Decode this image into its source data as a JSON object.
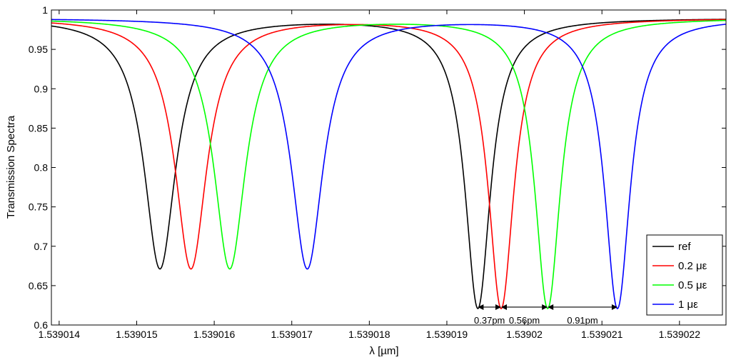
{
  "chart_data": {
    "type": "line",
    "title": "",
    "xlabel": "λ [µm]",
    "ylabel": "Transmission Spectra",
    "xlim": [
      1.5390139,
      1.5390226
    ],
    "ylim": [
      0.6,
      1.0
    ],
    "xticks": [
      1.539014,
      1.539015,
      1.539016,
      1.539017,
      1.539018,
      1.539019,
      1.53902,
      1.539021,
      1.539022
    ],
    "xtick_labels": [
      "1.539014",
      "1.539015",
      "1.539016",
      "1.539017",
      "1.539018",
      "1.539019",
      "1.53902",
      "1.539021",
      "1.539022"
    ],
    "yticks": [
      0.6,
      0.65,
      0.7,
      0.75,
      0.8,
      0.85,
      0.9,
      0.95,
      1.0
    ],
    "ytick_labels": [
      "0.6",
      "0.65",
      "0.7",
      "0.75",
      "0.8",
      "0.85",
      "0.9",
      "0.95",
      "1"
    ],
    "grid": false,
    "legend_position": "bottom-right",
    "series": [
      {
        "name": "ref",
        "color": "#000000",
        "dips": [
          {
            "center": 1.5390153,
            "min": 0.672,
            "half_width": 2.5e-07
          },
          {
            "center": 1.5390194,
            "min": 0.622,
            "half_width": 2e-07
          }
        ],
        "baseline": 0.99
      },
      {
        "name": "0.2 με",
        "color": "#ff0000",
        "dips": [
          {
            "center": 1.5390157,
            "min": 0.672,
            "half_width": 2.5e-07
          },
          {
            "center": 1.5390197,
            "min": 0.622,
            "half_width": 2e-07
          }
        ],
        "baseline": 0.99
      },
      {
        "name": "0.5 με",
        "color": "#00ff00",
        "dips": [
          {
            "center": 1.5390162,
            "min": 0.672,
            "half_width": 2.5e-07
          },
          {
            "center": 1.5390203,
            "min": 0.622,
            "half_width": 2e-07
          }
        ],
        "baseline": 0.99
      },
      {
        "name": "1 με",
        "color": "#0000ff",
        "dips": [
          {
            "center": 1.5390172,
            "min": 0.672,
            "half_width": 2.5e-07
          },
          {
            "center": 1.5390212,
            "min": 0.622,
            "half_width": 2e-07
          }
        ],
        "baseline": 0.99
      }
    ],
    "annotations": [
      {
        "text": "0.37pm",
        "from": 1.5390194,
        "to": 1.5390197,
        "y": 0.62
      },
      {
        "text": "0.56pm",
        "from": 1.5390197,
        "to": 1.5390203,
        "y": 0.62
      },
      {
        "text": "0.91pm",
        "from": 1.5390203,
        "to": 1.5390212,
        "y": 0.62
      }
    ]
  }
}
